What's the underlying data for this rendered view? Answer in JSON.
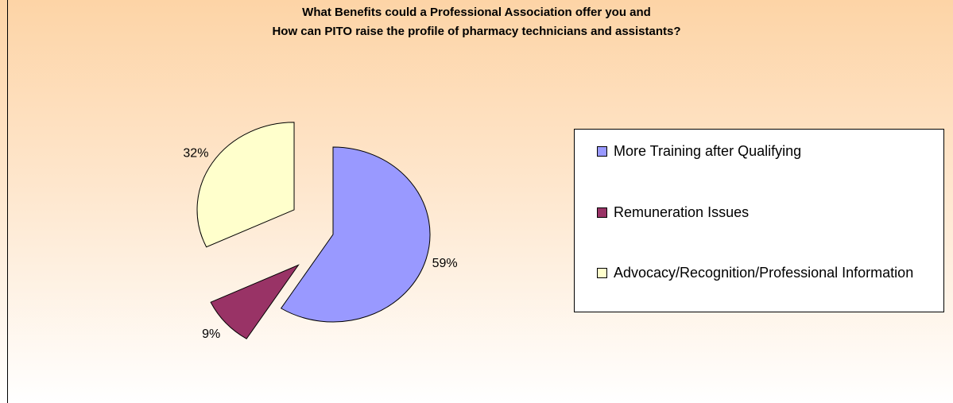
{
  "chart_data": {
    "type": "pie",
    "title": "What Benefits could a Professional Association offer you and\nHow can PITO raise the profile of pharmacy technicians and assistants?",
    "categories": [
      "More Training after Qualifying",
      "Remuneration Issues",
      "Advocacy/Recognition/Professional Information"
    ],
    "values": [
      59,
      9,
      32
    ],
    "value_labels": [
      "59%",
      "9%",
      "32%"
    ],
    "colors": [
      "#9999ff",
      "#993366",
      "#ffffcc"
    ],
    "legend": "right"
  }
}
